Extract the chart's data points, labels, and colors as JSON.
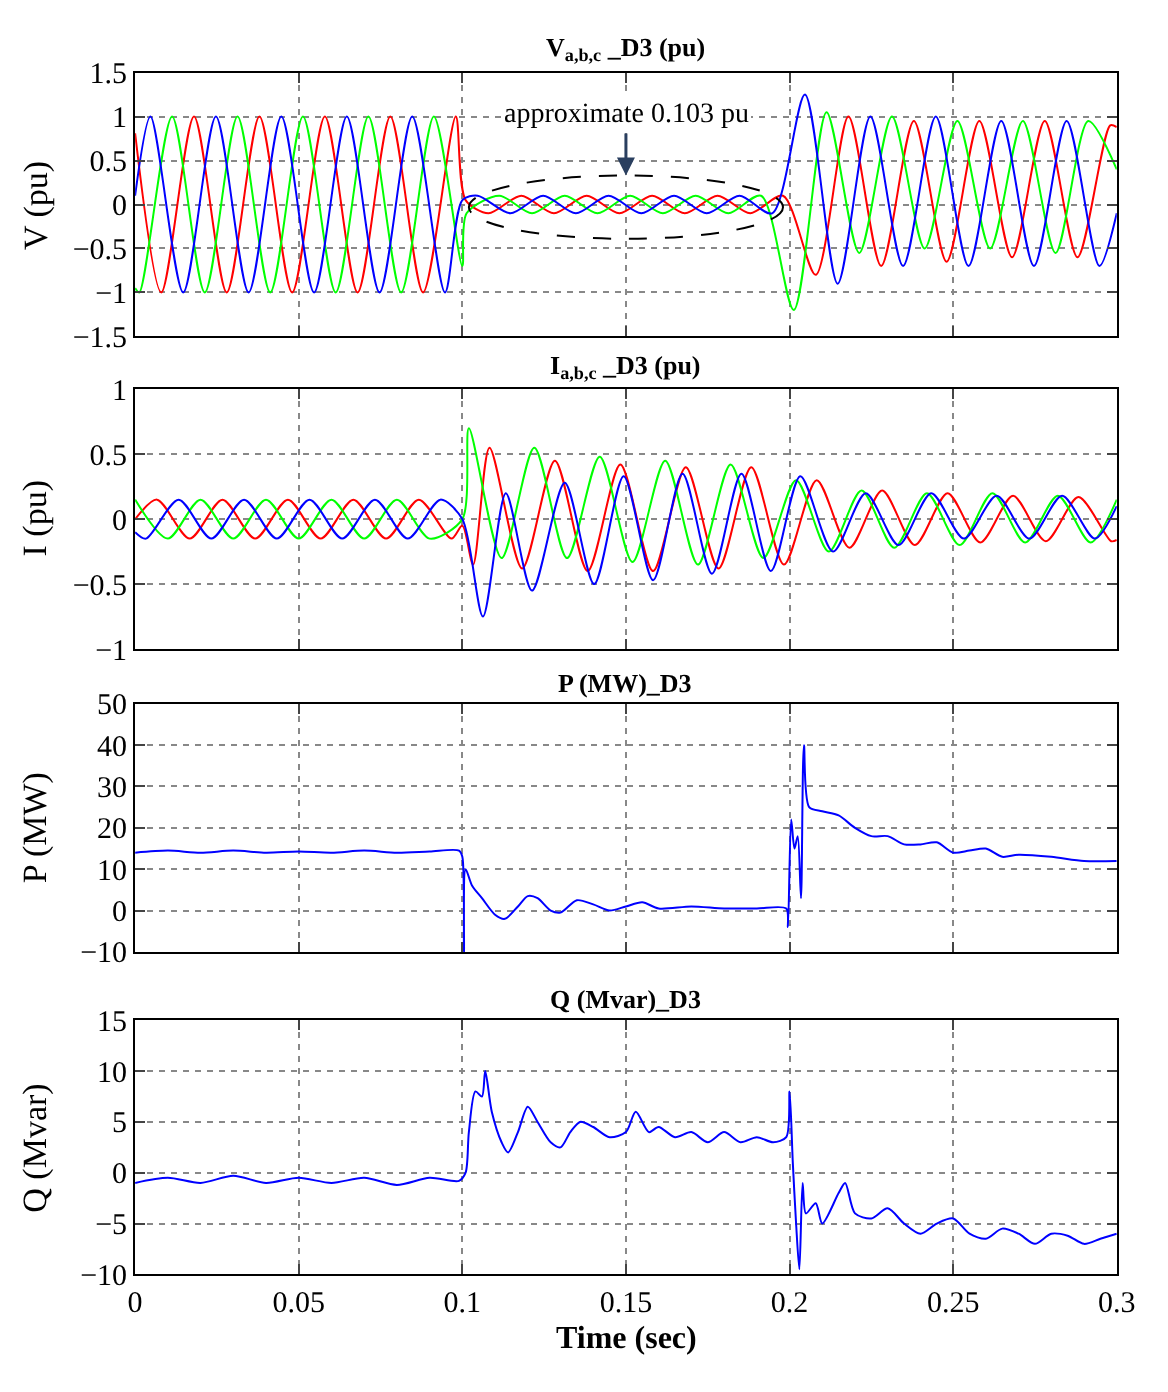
{
  "chart_data": [
    {
      "type": "line",
      "title": "V$_{a,b,c}$ _D3 (pu)",
      "ylabel": "V (pu)",
      "xlim": [
        0,
        0.3
      ],
      "xticks": [
        0,
        0.05,
        0.1,
        0.15,
        0.2,
        0.25,
        0.3
      ],
      "ylim": [
        -1.5,
        1.5
      ],
      "yticks": [
        -1.5,
        -1,
        -0.5,
        0,
        0.5,
        1,
        1.5
      ],
      "grid": true,
      "tick_labels": "y",
      "line_style": "solid",
      "annotations": [
        "approximate 0.103 pu"
      ],
      "series": [
        {
          "color": "#ff0000",
          "x": [
            0,
            0.008,
            0.018,
            0.028,
            0.038,
            0.048,
            0.058,
            0.068,
            0.078,
            0.088,
            0.098,
            0.101,
            0.108,
            0.118,
            0.128,
            0.138,
            0.148,
            0.158,
            0.168,
            0.178,
            0.188,
            0.198,
            0.208,
            0.218,
            0.228,
            0.238,
            0.248,
            0.258,
            0.268,
            0.278,
            0.288,
            0.298,
            0.3
          ],
          "values": [
            0.81,
            -1,
            1,
            -1,
            1,
            -1,
            1,
            -1,
            1,
            -1,
            1,
            0.05,
            -0.1,
            0.1,
            -0.1,
            0.1,
            -0.1,
            0.1,
            -0.1,
            0.1,
            -0.1,
            0.1,
            -0.8,
            1,
            -0.7,
            0.95,
            -0.65,
            0.95,
            -0.6,
            0.95,
            -0.6,
            0.9,
            0.88
          ]
        },
        {
          "color": "#00ff00",
          "x": [
            0,
            0.0013,
            0.0113,
            0.0213,
            0.0313,
            0.0413,
            0.0513,
            0.0613,
            0.0713,
            0.0813,
            0.0913,
            0.1,
            0.1013,
            0.1113,
            0.1213,
            0.1313,
            0.1413,
            0.1513,
            0.1613,
            0.1713,
            0.1813,
            0.1913,
            0.2013,
            0.2113,
            0.2213,
            0.2313,
            0.2413,
            0.2513,
            0.2613,
            0.2713,
            0.2813,
            0.2913,
            0.3
          ],
          "values": [
            -0.95,
            -1,
            1,
            -1,
            1,
            -1,
            1,
            -1,
            1,
            -1,
            1,
            -0.7,
            -0.1,
            0.1,
            -0.1,
            0.1,
            -0.1,
            0.1,
            -0.1,
            0.1,
            -0.1,
            0.1,
            -1.2,
            1.05,
            -0.55,
            1,
            -0.5,
            0.95,
            -0.5,
            0.95,
            -0.55,
            0.95,
            0.4
          ]
        },
        {
          "color": "#0000ff",
          "x": [
            0,
            0.0047,
            0.0147,
            0.0247,
            0.0347,
            0.0447,
            0.0547,
            0.0647,
            0.0747,
            0.0847,
            0.0947,
            0.1,
            0.1047,
            0.1147,
            0.1247,
            0.1347,
            0.1447,
            0.1547,
            0.1647,
            0.1747,
            0.1847,
            0.1947,
            0.2047,
            0.2147,
            0.2247,
            0.2347,
            0.2447,
            0.2547,
            0.2647,
            0.2747,
            0.2847,
            0.2947,
            0.3
          ],
          "values": [
            0.1,
            1,
            -1,
            1,
            -1,
            1,
            -1,
            1,
            -1,
            1,
            -1,
            0.05,
            0.1,
            -0.1,
            0.1,
            -0.1,
            0.1,
            -0.1,
            0.1,
            -0.1,
            0.1,
            -0.1,
            1.25,
            -0.9,
            1,
            -0.7,
            1,
            -0.7,
            0.95,
            -0.7,
            0.95,
            -0.7,
            -0.1
          ]
        }
      ]
    },
    {
      "type": "line",
      "title": "I$_{a,b,c}$ _D3 (pu)",
      "ylabel": "I (pu)",
      "xlim": [
        0,
        0.3
      ],
      "xticks": [
        0,
        0.05,
        0.1,
        0.15,
        0.2,
        0.25,
        0.3
      ],
      "ylim": [
        -1,
        1
      ],
      "yticks": [
        -1,
        -0.5,
        0,
        0.5,
        1
      ],
      "grid": true,
      "tick_labels": "y",
      "line_style": "solid",
      "series": [
        {
          "color": "#ff0000",
          "x": [
            0,
            0.0067,
            0.0167,
            0.0267,
            0.0367,
            0.0467,
            0.0567,
            0.0667,
            0.0767,
            0.0867,
            0.0967,
            0.1,
            0.1033,
            0.1083,
            0.1183,
            0.1283,
            0.1383,
            0.1483,
            0.1583,
            0.1683,
            0.1783,
            0.1883,
            0.1983,
            0.2083,
            0.2183,
            0.2283,
            0.2383,
            0.2483,
            0.2583,
            0.2683,
            0.2783,
            0.2883,
            0.2983,
            0.3
          ],
          "values": [
            0,
            0.15,
            -0.15,
            0.15,
            -0.15,
            0.15,
            -0.15,
            0.15,
            -0.15,
            0.15,
            -0.15,
            -0.05,
            -0.35,
            0.55,
            -0.38,
            0.45,
            -0.4,
            0.42,
            -0.4,
            0.4,
            -0.38,
            0.4,
            -0.35,
            0.3,
            -0.22,
            0.22,
            -0.2,
            0.2,
            -0.18,
            0.18,
            -0.17,
            0.17,
            -0.17,
            -0.16
          ]
        },
        {
          "color": "#00ff00",
          "x": [
            0,
            0.01,
            0.02,
            0.03,
            0.04,
            0.05,
            0.06,
            0.07,
            0.08,
            0.09,
            0.1,
            0.102,
            0.112,
            0.122,
            0.132,
            0.142,
            0.152,
            0.162,
            0.172,
            0.182,
            0.192,
            0.202,
            0.212,
            0.222,
            0.232,
            0.242,
            0.252,
            0.262,
            0.272,
            0.282,
            0.292,
            0.3
          ],
          "values": [
            0.15,
            -0.15,
            0.15,
            -0.15,
            0.15,
            -0.15,
            0.15,
            -0.15,
            0.15,
            -0.15,
            0,
            0.7,
            -0.3,
            0.55,
            -0.3,
            0.48,
            -0.33,
            0.45,
            -0.35,
            0.42,
            -0.3,
            0.3,
            -0.25,
            0.22,
            -0.22,
            0.2,
            -0.2,
            0.2,
            -0.18,
            0.18,
            -0.18,
            0.15
          ]
        },
        {
          "color": "#0000ff",
          "x": [
            0,
            0.0033,
            0.0133,
            0.0233,
            0.0333,
            0.0433,
            0.0533,
            0.0633,
            0.0733,
            0.0833,
            0.0933,
            0.1,
            0.1063,
            0.1133,
            0.1213,
            0.1313,
            0.1403,
            0.1493,
            0.1583,
            0.1673,
            0.1763,
            0.1853,
            0.1943,
            0.2033,
            0.2133,
            0.2233,
            0.2333,
            0.2433,
            0.2533,
            0.2633,
            0.2733,
            0.2833,
            0.2933,
            0.3
          ],
          "values": [
            -0.1,
            -0.15,
            0.15,
            -0.15,
            0.15,
            -0.15,
            0.15,
            -0.15,
            0.15,
            -0.15,
            0.15,
            0,
            -0.75,
            0.2,
            -0.55,
            0.28,
            -0.5,
            0.33,
            -0.47,
            0.35,
            -0.42,
            0.35,
            -0.4,
            0.33,
            -0.25,
            0.2,
            -0.2,
            0.2,
            -0.15,
            0.18,
            -0.15,
            0.18,
            -0.15,
            0.1
          ]
        }
      ]
    },
    {
      "type": "line",
      "title": "P (MW)_D3",
      "ylabel": "P (MW)",
      "xlim": [
        0,
        0.3
      ],
      "xticks": [
        0,
        0.05,
        0.1,
        0.15,
        0.2,
        0.25,
        0.3
      ],
      "ylim": [
        -10,
        50
      ],
      "yticks": [
        -10,
        0,
        10,
        20,
        30,
        40,
        50
      ],
      "grid": true,
      "tick_labels": "y",
      "line_style": "solid",
      "series": [
        {
          "color": "#0000ff",
          "x": [
            0,
            0.01,
            0.02,
            0.03,
            0.04,
            0.05,
            0.06,
            0.07,
            0.08,
            0.09,
            0.099,
            0.1,
            0.1005,
            0.101,
            0.103,
            0.106,
            0.11,
            0.113,
            0.117,
            0.12,
            0.123,
            0.127,
            0.13,
            0.135,
            0.14,
            0.145,
            0.15,
            0.155,
            0.16,
            0.17,
            0.18,
            0.19,
            0.199,
            0.1995,
            0.2005,
            0.2015,
            0.2025,
            0.2035,
            0.2044,
            0.206,
            0.21,
            0.215,
            0.22,
            0.225,
            0.23,
            0.235,
            0.24,
            0.245,
            0.25,
            0.255,
            0.26,
            0.265,
            0.27,
            0.28,
            0.29,
            0.3
          ],
          "values": [
            14,
            14.5,
            14,
            14.5,
            14,
            14.3,
            14,
            14.5,
            14,
            14.3,
            14.5,
            13,
            -10,
            10,
            6,
            3,
            -1,
            -2,
            1,
            3.5,
            3,
            0,
            -0.5,
            2.5,
            1.5,
            0,
            1,
            2,
            0.5,
            1,
            0.5,
            0.5,
            0.5,
            -4,
            22,
            15,
            18,
            3,
            40,
            25,
            24,
            23,
            20,
            18,
            18,
            16,
            16,
            16.5,
            14,
            14.5,
            15,
            13,
            13.5,
            13,
            12,
            12
          ]
        }
      ]
    },
    {
      "type": "line",
      "title": "Q (Mvar)_D3",
      "ylabel": "Q (Mvar)",
      "xlabel": "Time (sec)",
      "xlim": [
        0,
        0.3
      ],
      "xticks": [
        0,
        0.05,
        0.1,
        0.15,
        0.2,
        0.25,
        0.3
      ],
      "ylim": [
        -10,
        15
      ],
      "yticks": [
        -10,
        -5,
        0,
        5,
        10,
        15
      ],
      "grid": true,
      "line_style": "solid",
      "series": [
        {
          "color": "#0000ff",
          "x": [
            0,
            0.01,
            0.02,
            0.03,
            0.04,
            0.05,
            0.06,
            0.07,
            0.08,
            0.09,
            0.099,
            0.101,
            0.102,
            0.104,
            0.106,
            0.107,
            0.109,
            0.112,
            0.114,
            0.117,
            0.12,
            0.123,
            0.127,
            0.13,
            0.133,
            0.136,
            0.14,
            0.145,
            0.15,
            0.153,
            0.157,
            0.16,
            0.165,
            0.17,
            0.175,
            0.18,
            0.185,
            0.19,
            0.195,
            0.199,
            0.2,
            0.201,
            0.202,
            0.203,
            0.204,
            0.205,
            0.208,
            0.21,
            0.215,
            0.217,
            0.22,
            0.225,
            0.23,
            0.235,
            0.24,
            0.245,
            0.25,
            0.255,
            0.26,
            0.265,
            0.27,
            0.275,
            0.28,
            0.285,
            0.29,
            0.295,
            0.3
          ],
          "values": [
            -1,
            -0.5,
            -1,
            -0.3,
            -1,
            -0.5,
            -1,
            -0.5,
            -1.2,
            -0.5,
            -0.8,
            0,
            4,
            8,
            7.5,
            10,
            6,
            3,
            2,
            4,
            6.5,
            5,
            3,
            2.5,
            4,
            5,
            4.5,
            3.5,
            4,
            6,
            4,
            4.5,
            3.5,
            4,
            3,
            4,
            3,
            3.5,
            3,
            3.5,
            8,
            1,
            -5,
            -9.5,
            -1,
            -4,
            -3,
            -5,
            -2,
            -1,
            -4,
            -4.5,
            -3.5,
            -5,
            -6,
            -5,
            -4.5,
            -6,
            -6.5,
            -5.5,
            -6,
            -7,
            -6,
            -6.2,
            -7,
            -6.5,
            -6
          ]
        }
      ]
    }
  ]
}
